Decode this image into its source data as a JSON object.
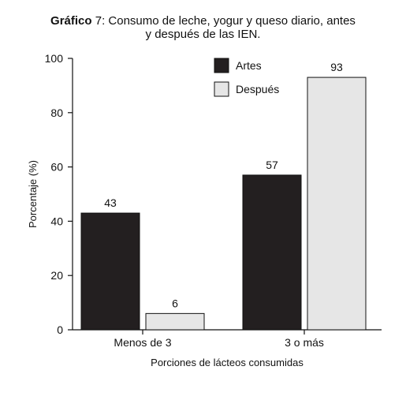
{
  "title": {
    "prefix": "Gráfico",
    "rest": " 7: Consumo de leche, yogur y queso diario, antes",
    "line2": "y después de las IEN."
  },
  "chart_data": {
    "type": "bar",
    "categories": [
      "Menos de 3",
      "3 o más"
    ],
    "series": [
      {
        "name": "Artes",
        "values": [
          43,
          57
        ],
        "color": "#231f20"
      },
      {
        "name": "Después",
        "values": [
          6,
          93
        ],
        "color": "#e6e6e6"
      }
    ],
    "xlabel": "Porciones de lácteos consumidas",
    "ylabel": "Porcentaje (%)",
    "ylim": [
      0,
      100
    ],
    "yticks": [
      0,
      20,
      40,
      60,
      80,
      100
    ],
    "grid": false,
    "legend": "top-right"
  }
}
